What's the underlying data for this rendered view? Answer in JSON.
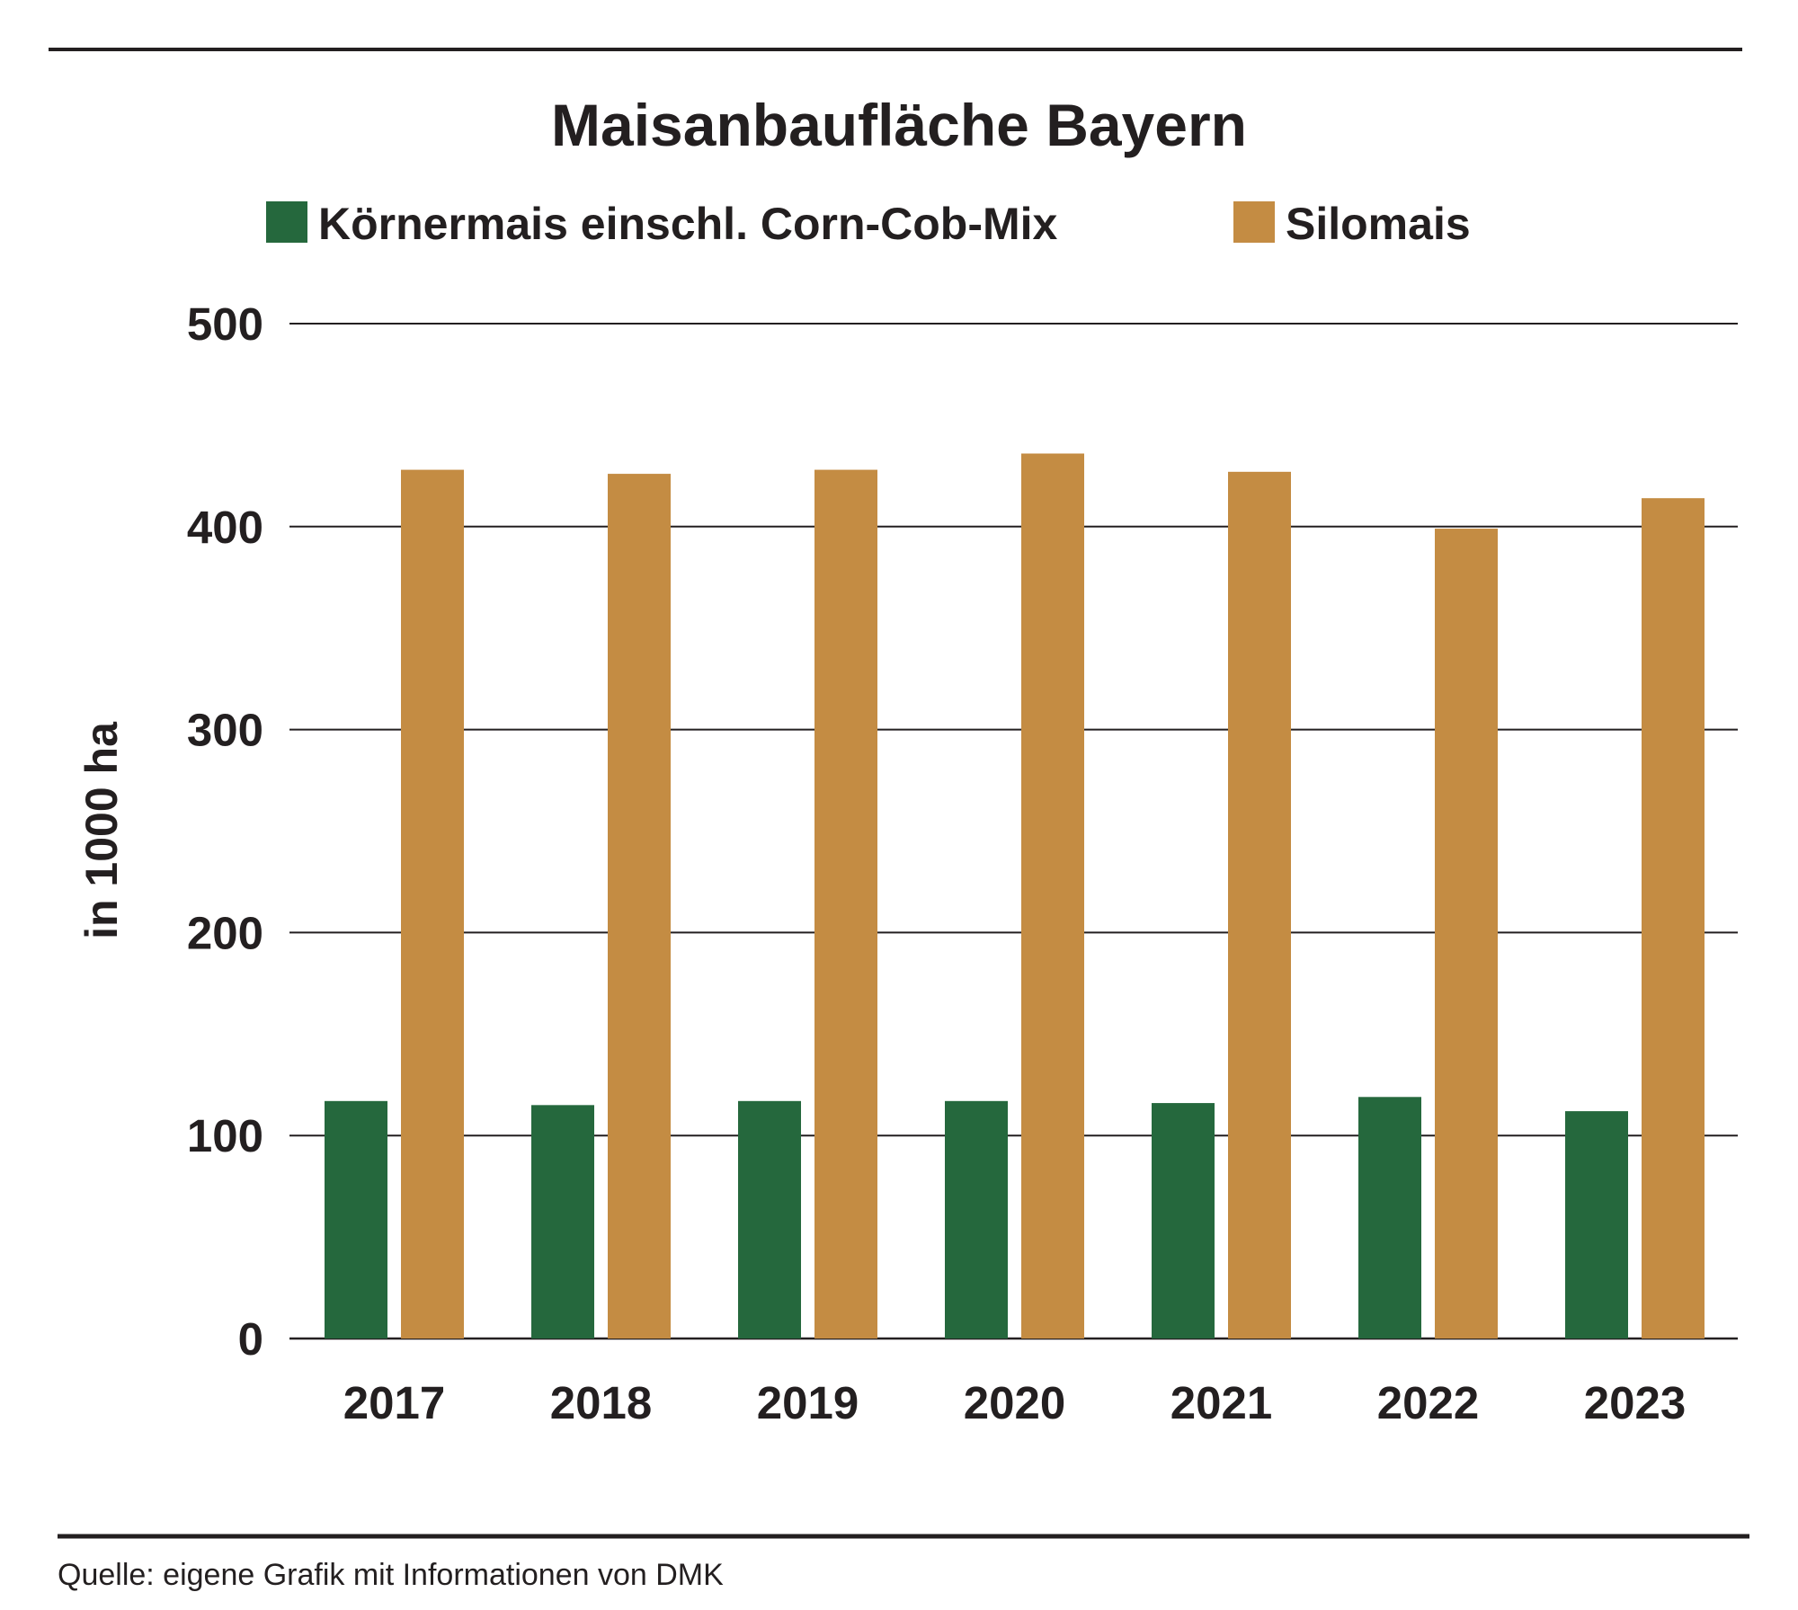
{
  "chart_data": {
    "type": "bar",
    "title": "Maisanbaufläche Bayern",
    "ylabel": "in 1000 ha",
    "xlabel": "",
    "categories": [
      "2017",
      "2018",
      "2019",
      "2020",
      "2021",
      "2022",
      "2023"
    ],
    "series": [
      {
        "name": "Körnermais einschl. Corn-Cob-Mix",
        "color": "#25683d",
        "values": [
          117,
          115,
          117,
          117,
          116,
          119,
          112
        ]
      },
      {
        "name": "Silomais",
        "color": "#c48c43",
        "values": [
          428,
          426,
          428,
          436,
          427,
          399,
          414
        ]
      }
    ],
    "ylim": [
      0,
      500
    ],
    "yticks": [
      "0",
      "100",
      "200",
      "300",
      "400",
      "500"
    ],
    "grid": true,
    "legend_position": "top"
  },
  "source": "Quelle: eigene Grafik mit Informationen von DMK"
}
